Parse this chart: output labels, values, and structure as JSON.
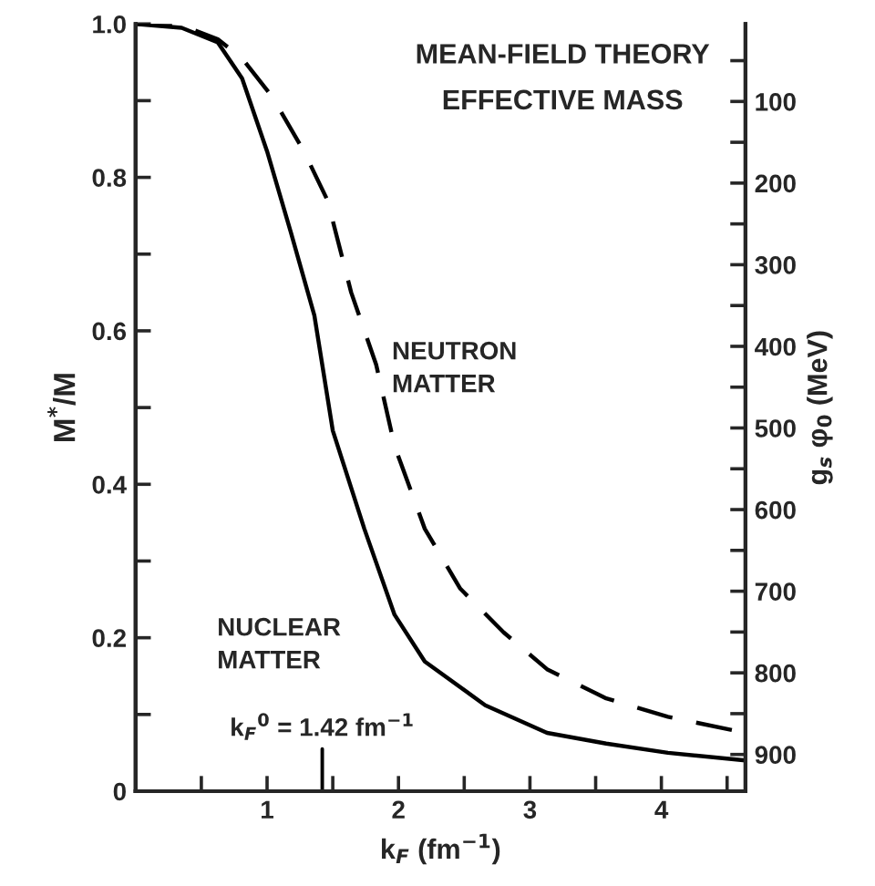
{
  "chart_data": {
    "type": "line",
    "title": "MEAN-FIELD THEORY",
    "subtitle": "EFFECTIVE MASS",
    "xlabel": "k$_{F}$ (fm$^{−1}$)",
    "ylabel": "M$^{*}$/M",
    "y2label": "g$_{s}$ φ$_{0}$ (MeV)",
    "series": [
      {
        "name": "NUCLEAR MATTER",
        "color": "#000000",
        "line_style": "solid",
        "x": [
          0,
          0.35,
          0.625,
          0.81,
          1.0,
          1.18,
          1.36,
          1.5,
          1.74,
          1.97,
          2.2,
          2.66,
          3.13,
          3.58,
          4.05,
          4.64
        ],
        "values": [
          1.0,
          0.995,
          0.976,
          0.929,
          0.834,
          0.729,
          0.62,
          0.47,
          0.342,
          0.23,
          0.169,
          0.112,
          0.076,
          0.062,
          0.05,
          0.04
        ]
      },
      {
        "name": "NEUTRON MATTER",
        "color": "#000000",
        "line_style": "dashed",
        "x": [
          0,
          0.35,
          0.625,
          0.81,
          1.04,
          1.28,
          1.46,
          1.64,
          1.83,
          1.97,
          2.2,
          2.47,
          2.8,
          3.13,
          3.58,
          4.05,
          4.64
        ],
        "values": [
          1.0,
          0.998,
          0.98,
          0.955,
          0.905,
          0.834,
          0.77,
          0.65,
          0.556,
          0.45,
          0.342,
          0.264,
          0.207,
          0.159,
          0.121,
          0.097,
          0.076
        ]
      }
    ],
    "ref_lines": [
      {
        "axis": "x",
        "value": 1.42,
        "label": "k$_{F}$$^{0}$ = 1.42 fm$^{−1}$",
        "color": "#000000",
        "line_style": "solid"
      }
    ],
    "xlim": [
      0,
      4.64
    ],
    "xticks": [
      {
        "value": 0.5,
        "label": null
      },
      1,
      {
        "value": 1.5,
        "label": null
      },
      2,
      {
        "value": 2.5,
        "label": null
      },
      3,
      {
        "value": 3.5,
        "label": null
      },
      4,
      {
        "value": 4.5,
        "label": null
      }
    ],
    "ylim": [
      0,
      1.0
    ],
    "yticks": [
      0,
      {
        "value": 0.1,
        "label": null
      },
      0.2,
      {
        "value": 0.3,
        "label": null
      },
      0.4,
      {
        "value": 0.5,
        "label": null
      },
      0.6,
      {
        "value": 0.7,
        "label": null
      },
      0.8,
      {
        "value": 0.9,
        "label": null
      },
      {
        "value": 1.0,
        "label": "1.0"
      }
    ],
    "y2lim": [
      945,
      5
    ],
    "y2ticks": [
      {
        "value": 50,
        "label": null
      },
      100,
      {
        "value": 150,
        "label": null
      },
      200,
      {
        "value": 250,
        "label": null
      },
      300,
      {
        "value": 350,
        "label": null
      },
      400,
      {
        "value": 450,
        "label": null
      },
      500,
      {
        "value": 550,
        "label": null
      },
      600,
      {
        "value": 650,
        "label": null
      },
      700,
      {
        "value": 750,
        "label": null
      },
      800,
      {
        "value": 850,
        "label": null
      },
      900
    ],
    "grid": false,
    "legend": false,
    "marker": "none"
  }
}
